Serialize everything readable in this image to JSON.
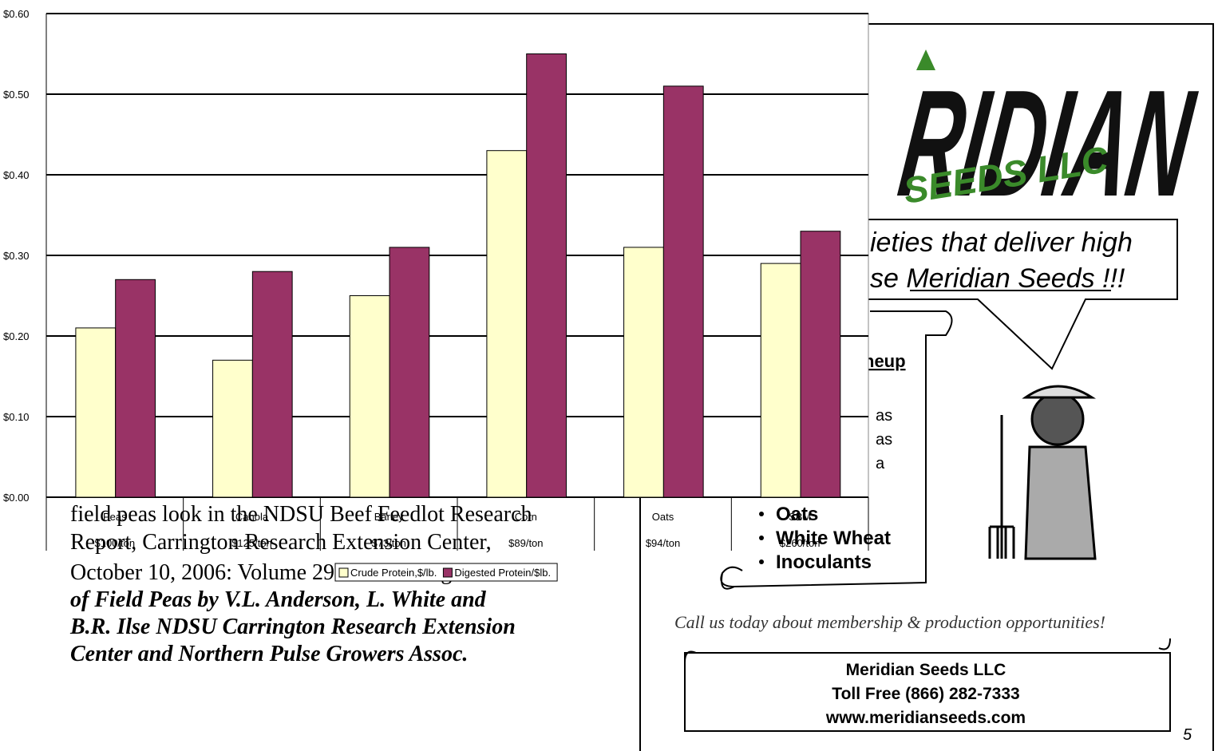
{
  "chart_data": {
    "type": "bar",
    "categories": [
      [
        "Peas",
        "$100/ton"
      ],
      [
        "Canola",
        "$125/ton"
      ],
      [
        "Barley",
        "$73/ton"
      ],
      [
        "Corn",
        "$89/ton"
      ],
      [
        "Oats",
        "$94/ton"
      ],
      [
        "SBM",
        "$260/ton"
      ]
    ],
    "series": [
      {
        "name": "Crude Protein,$/lb.",
        "color": "#ffffcc",
        "values": [
          0.21,
          0.17,
          0.25,
          0.43,
          0.31,
          0.29
        ]
      },
      {
        "name": "Digested Protein/$lb.",
        "color": "#993366",
        "values": [
          0.27,
          0.28,
          0.31,
          0.55,
          0.51,
          0.33
        ]
      }
    ],
    "ylim": [
      0,
      0.6
    ],
    "yticks": [
      {
        "value": 0,
        "label": "$0.00"
      },
      {
        "value": 0.1,
        "label": "$0.10"
      },
      {
        "value": 0.2,
        "label": "$0.20"
      },
      {
        "value": 0.3,
        "label": "$0.30"
      },
      {
        "value": 0.4,
        "label": "$0.40"
      },
      {
        "value": 0.5,
        "label": "$0.50"
      },
      {
        "value": 0.6,
        "label": "$0.60"
      }
    ],
    "grid": true,
    "legend": "bottom"
  },
  "document": {
    "lines": [
      "field peas look in the NDSU Beef Feedlot Research",
      "Report, Carrington Research Extension Center,",
      "October 10, 2006: Volume 29 The Feeding Value"
    ],
    "citation": [
      "of Field Peas by V.L. Anderson, L. White and",
      "B.R. Ilse NDSU Carrington Research Extension",
      "Center and Northern Pulse Growers Assoc."
    ]
  },
  "ad": {
    "logo": "RIDIAN",
    "logo_sub": "SEEDS LLC",
    "slogan": [
      "ieties that deliver high",
      "se Meridian Seeds !!!"
    ],
    "lineup": {
      "heading": "neup",
      "fragments": [
        "as",
        "as",
        "a"
      ],
      "items": [
        "Oats",
        "White Wheat",
        "Inoculants"
      ]
    },
    "tagline": "Call us today about membership & production opportunities!",
    "contact": [
      "Meridian Seeds LLC",
      "Toll Free (866) 282-7333",
      "www.meridianseeds.com"
    ],
    "page_number": "5"
  }
}
